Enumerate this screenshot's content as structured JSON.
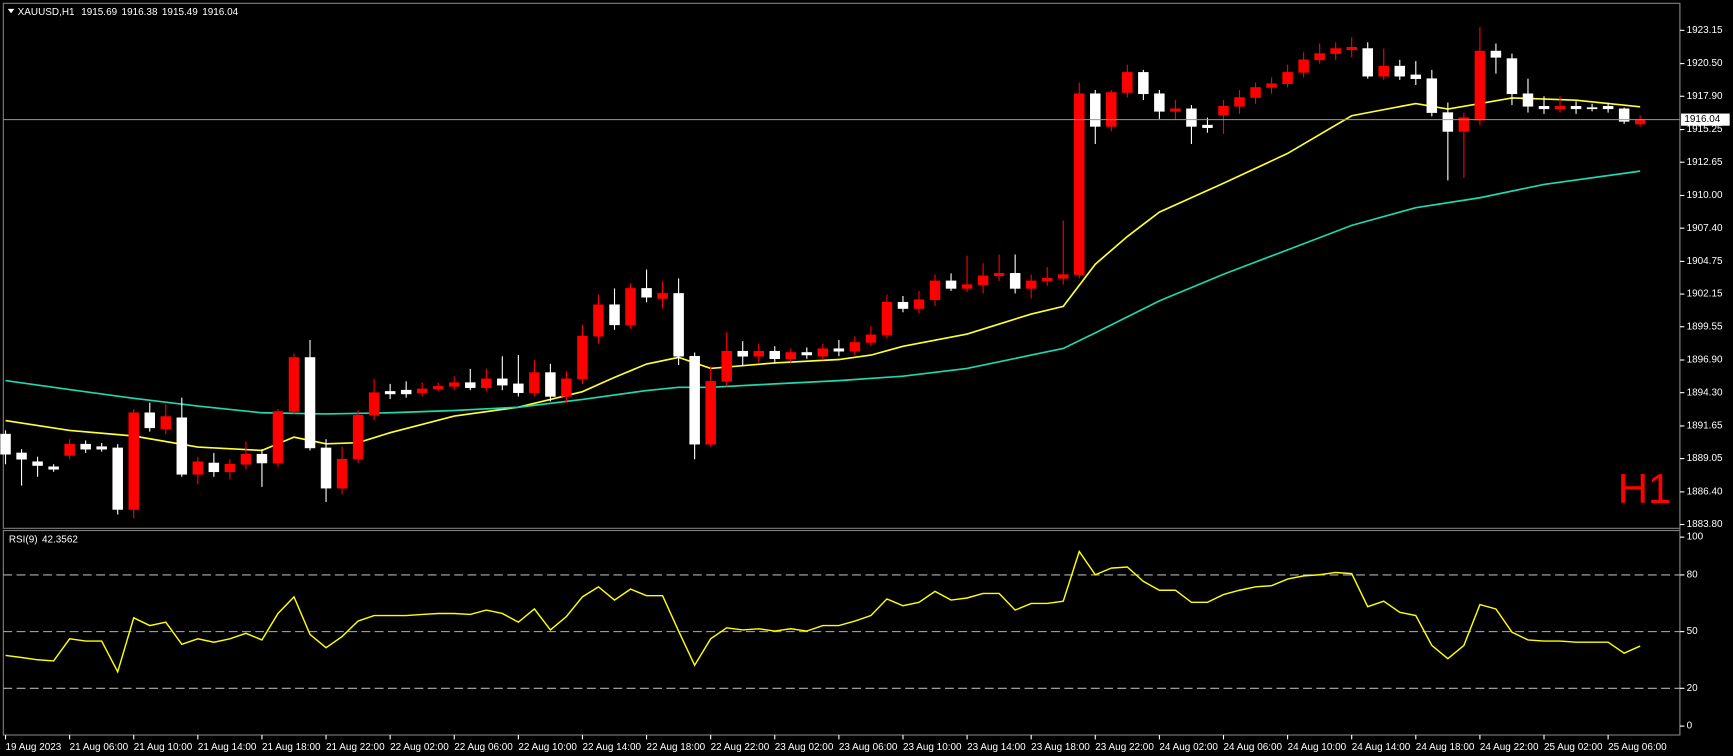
{
  "chart_data": [
    {
      "type": "candlestick",
      "symbol": "XAUUSD,H1",
      "header_values": [
        1915.69,
        1916.38,
        1915.49,
        1916.04
      ],
      "watermark": "H1",
      "categories": [
        "19 Aug 2023",
        null,
        null,
        null,
        "21 Aug 06:00",
        null,
        null,
        null,
        "21 Aug 10:00",
        null,
        null,
        null,
        "21 Aug 14:00",
        null,
        null,
        null,
        "21 Aug 18:00",
        null,
        null,
        null,
        "21 Aug 22:00",
        null,
        null,
        null,
        "22 Aug 02:00",
        null,
        null,
        null,
        "22 Aug 06:00",
        null,
        null,
        null,
        "22 Aug 10:00",
        null,
        null,
        null,
        "22 Aug 14:00",
        null,
        null,
        null,
        "22 Aug 18:00",
        null,
        null,
        null,
        "22 Aug 22:00",
        null,
        null,
        null,
        "23 Aug 02:00",
        null,
        null,
        null,
        "23 Aug 06:00",
        null,
        null,
        null,
        "23 Aug 10:00",
        null,
        null,
        null,
        "23 Aug 14:00",
        null,
        null,
        null,
        "23 Aug 18:00",
        null,
        null,
        null,
        "23 Aug 22:00",
        null,
        null,
        null,
        "24 Aug 02:00",
        null,
        null,
        null,
        "24 Aug 06:00",
        null,
        null,
        null,
        "24 Aug 10:00",
        null,
        null,
        null,
        "24 Aug 14:00",
        null,
        null,
        null,
        "24 Aug 18:00",
        null,
        null,
        null,
        "24 Aug 22:00",
        null,
        null,
        null,
        "25 Aug 02:00",
        null,
        null,
        null,
        "25 Aug 06:00",
        null,
        null
      ],
      "open": [
        1891.0,
        1889.5,
        1888.8,
        1888.4,
        1889.3,
        1890.2,
        1890.0,
        1889.9,
        1885.0,
        1892.7,
        1891.4,
        1892.3,
        1887.8,
        1888.7,
        1888.0,
        1888.6,
        1889.4,
        1888.7,
        1892.8,
        1897.1,
        1889.9,
        1886.7,
        1889.0,
        1892.5,
        1894.4,
        1894.5,
        1894.3,
        1894.6,
        1894.8,
        1895.1,
        1894.7,
        1895.4,
        1895.0,
        1894.3,
        1895.9,
        1894.0,
        1895.4,
        1898.8,
        1901.3,
        1899.7,
        1902.6,
        1901.8,
        1902.2,
        1897.2,
        1890.2,
        1895.2,
        1897.6,
        1897.2,
        1897.6,
        1897.0,
        1897.5,
        1897.2,
        1897.8,
        1897.6,
        1898.3,
        1898.9,
        1901.5,
        1901.0,
        1901.7,
        1903.2,
        1902.6,
        1902.9,
        1903.6,
        1903.8,
        1902.6,
        1903.2,
        1903.4,
        1903.7,
        1918.1,
        1915.5,
        1918.2,
        1919.8,
        1918.1,
        1916.7,
        1916.9,
        1915.6,
        1916.4,
        1917.1,
        1917.8,
        1918.6,
        1918.9,
        1919.8,
        1920.8,
        1921.3,
        1921.6,
        1921.7,
        1919.5,
        1920.3,
        1919.6,
        1919.3,
        1916.6,
        1915.1,
        1916.0,
        1921.5,
        1920.9,
        1918.1,
        1917.1,
        1916.9,
        1917.1,
        1917.0,
        1917.1,
        1916.9,
        1915.69
      ],
      "high": [
        1891.3,
        1889.8,
        1889.2,
        1888.6,
        1890.6,
        1890.5,
        1890.3,
        1890.2,
        1893.0,
        1893.5,
        1893.4,
        1893.9,
        1889.2,
        1889.5,
        1889.0,
        1890.4,
        1889.8,
        1893.0,
        1897.4,
        1898.5,
        1890.6,
        1890.0,
        1892.9,
        1895.4,
        1895.0,
        1895.2,
        1895.1,
        1895.1,
        1895.6,
        1896.2,
        1896.2,
        1897.2,
        1897.3,
        1896.9,
        1896.6,
        1896.0,
        1899.7,
        1902.1,
        1902.6,
        1903.0,
        1904.1,
        1903.2,
        1903.4,
        1897.5,
        1896.4,
        1899.1,
        1898.4,
        1898.2,
        1898.0,
        1897.8,
        1897.9,
        1898.2,
        1898.5,
        1898.8,
        1899.6,
        1902.1,
        1902.0,
        1902.4,
        1903.7,
        1903.8,
        1905.2,
        1904.6,
        1905.3,
        1905.3,
        1903.7,
        1904.3,
        1908.0,
        1919.0,
        1918.4,
        1918.4,
        1920.4,
        1920.0,
        1918.4,
        1917.6,
        1917.2,
        1916.2,
        1917.6,
        1918.4,
        1919.0,
        1919.4,
        1920.4,
        1921.4,
        1922.1,
        1922.2,
        1922.6,
        1922.2,
        1921.7,
        1920.8,
        1920.7,
        1920.0,
        1917.4,
        1916.6,
        1923.4,
        1922.1,
        1921.3,
        1919.3,
        1917.9,
        1917.9,
        1917.5,
        1917.3,
        1917.4,
        1917.0,
        1916.38
      ],
      "low": [
        1888.6,
        1886.9,
        1887.6,
        1888.0,
        1889.0,
        1889.5,
        1889.6,
        1884.6,
        1884.3,
        1891.2,
        1891.0,
        1887.6,
        1887.0,
        1887.6,
        1887.4,
        1888.2,
        1886.8,
        1888.4,
        1892.6,
        1889.7,
        1885.6,
        1886.2,
        1888.7,
        1892.1,
        1893.8,
        1893.9,
        1894.0,
        1894.4,
        1894.5,
        1894.5,
        1894.4,
        1894.5,
        1894.0,
        1894.0,
        1893.6,
        1893.5,
        1895.0,
        1898.2,
        1899.3,
        1899.4,
        1901.5,
        1901.0,
        1896.5,
        1889.0,
        1890.0,
        1894.8,
        1896.4,
        1896.7,
        1896.6,
        1896.7,
        1897.0,
        1896.9,
        1897.2,
        1897.3,
        1898.0,
        1898.6,
        1900.7,
        1900.6,
        1901.2,
        1902.4,
        1902.3,
        1902.2,
        1903.2,
        1902.2,
        1901.8,
        1902.8,
        1902.9,
        1903.4,
        1914.1,
        1915.1,
        1917.8,
        1917.6,
        1916.1,
        1916.0,
        1914.1,
        1915.0,
        1914.9,
        1916.5,
        1917.3,
        1918.1,
        1918.6,
        1919.4,
        1920.5,
        1920.8,
        1921.0,
        1919.3,
        1919.2,
        1919.2,
        1918.8,
        1916.3,
        1911.2,
        1911.4,
        1915.6,
        1919.7,
        1917.2,
        1916.6,
        1916.5,
        1916.6,
        1916.5,
        1916.7,
        1916.6,
        1915.7,
        1915.49
      ],
      "close": [
        1889.4,
        1889.0,
        1888.5,
        1888.2,
        1890.2,
        1889.8,
        1889.8,
        1885.0,
        1892.7,
        1891.5,
        1892.4,
        1887.8,
        1888.8,
        1888.0,
        1888.6,
        1889.4,
        1888.7,
        1892.8,
        1897.1,
        1889.9,
        1886.7,
        1889.0,
        1892.5,
        1894.3,
        1894.2,
        1894.2,
        1894.6,
        1894.8,
        1895.1,
        1894.7,
        1895.4,
        1894.9,
        1894.3,
        1895.9,
        1894.0,
        1895.4,
        1898.8,
        1901.3,
        1899.7,
        1902.6,
        1901.9,
        1902.2,
        1897.2,
        1890.2,
        1895.2,
        1897.6,
        1897.2,
        1897.6,
        1897.0,
        1897.5,
        1897.3,
        1897.8,
        1897.6,
        1898.3,
        1898.9,
        1901.5,
        1901.0,
        1901.7,
        1903.2,
        1902.6,
        1902.9,
        1903.6,
        1903.8,
        1902.6,
        1903.2,
        1903.4,
        1903.7,
        1918.1,
        1915.5,
        1918.2,
        1919.8,
        1918.1,
        1916.7,
        1916.9,
        1915.5,
        1915.4,
        1917.1,
        1917.8,
        1918.6,
        1918.9,
        1919.8,
        1920.8,
        1921.3,
        1921.7,
        1921.8,
        1919.5,
        1920.3,
        1919.5,
        1919.3,
        1916.6,
        1915.1,
        1916.2,
        1921.5,
        1921.0,
        1918.1,
        1917.1,
        1916.9,
        1917.1,
        1916.9,
        1916.9,
        1916.9,
        1915.9,
        1916.04
      ],
      "up_color": "#ff0000",
      "down_color": "#ffffff",
      "lines": [
        {
          "color": "#ffff33",
          "x": [
            0,
            4,
            8,
            12,
            16,
            18,
            20,
            22,
            24,
            28,
            32,
            36,
            38,
            40,
            42,
            44,
            48,
            52,
            54,
            56,
            60,
            64,
            66,
            68,
            70,
            72,
            76,
            80,
            84,
            88,
            90,
            92,
            94,
            98,
            102
          ],
          "values": [
            1892.08,
            1891.29,
            1890.85,
            1889.97,
            1889.7,
            1890.76,
            1890.23,
            1890.32,
            1891.11,
            1892.44,
            1893.14,
            1894.38,
            1895.52,
            1896.58,
            1897.11,
            1896.23,
            1896.67,
            1896.94,
            1897.29,
            1897.99,
            1898.97,
            1900.56,
            1901.17,
            1904.53,
            1906.73,
            1908.68,
            1910.97,
            1913.35,
            1916.35,
            1917.32,
            1916.88,
            1917.32,
            1917.77,
            1917.59,
            1917.06
          ]
        },
        {
          "color": "#20d8b0",
          "x": [
            0,
            4,
            8,
            12,
            16,
            20,
            24,
            28,
            32,
            36,
            40,
            42,
            44,
            48,
            52,
            56,
            60,
            64,
            66,
            68,
            72,
            76,
            80,
            84,
            88,
            92,
            96,
            102
          ],
          "values": [
            1895.26,
            1894.55,
            1893.85,
            1893.23,
            1892.7,
            1892.61,
            1892.7,
            1892.88,
            1893.14,
            1893.76,
            1894.47,
            1894.73,
            1894.73,
            1895.0,
            1895.26,
            1895.61,
            1896.23,
            1897.29,
            1897.82,
            1899.06,
            1901.61,
            1903.73,
            1905.67,
            1907.62,
            1909.03,
            1909.82,
            1910.88,
            1911.94
          ]
        }
      ],
      "last_price": 1916.04,
      "ylim": [
        1883.5,
        1925.3
      ],
      "yticks": [
        1923.15,
        {
          "value": 1920.5,
          "label": "1920.50"
        },
        {
          "value": 1917.9,
          "label": "1917.90"
        },
        1915.25,
        1912.65,
        {
          "value": 1910,
          "label": "1910.00"
        },
        {
          "value": 1907.4,
          "label": "1907.40"
        },
        1904.75,
        1902.15,
        1899.55,
        {
          "value": 1896.9,
          "label": "1896.90"
        },
        {
          "value": 1894.3,
          "label": "1894.30"
        },
        1891.65,
        1889.05,
        {
          "value": 1886.4,
          "label": "1886.40"
        },
        {
          "value": 1883.8,
          "label": "1883.80"
        }
      ]
    },
    {
      "type": "line",
      "title": "RSI(9)",
      "title_value": 42.3562,
      "color": "#ffff00",
      "values": [
        37.4,
        36.3,
        35.1,
        34.5,
        46.2,
        45,
        45,
        28.7,
        57.3,
        53.2,
        55,
        43.3,
        46.2,
        44.4,
        46.2,
        49.1,
        45.6,
        59.6,
        68.4,
        48.5,
        41.5,
        47.4,
        55.6,
        58.5,
        58.5,
        58.5,
        59.1,
        59.6,
        59.6,
        59.1,
        61.4,
        59.6,
        55,
        62,
        50.9,
        58,
        68.4,
        73.7,
        66.7,
        72.5,
        69,
        69,
        50.3,
        32.2,
        46.2,
        52,
        50.9,
        51.5,
        50.3,
        51.5,
        50.3,
        53.2,
        53.2,
        55.6,
        58.5,
        67.3,
        63.7,
        65.5,
        71.3,
        66.7,
        67.8,
        70.2,
        70.2,
        61.4,
        64.9,
        64.9,
        66.1,
        92.4,
        80.1,
        83.6,
        84.2,
        76.6,
        71.9,
        71.9,
        65.5,
        65.5,
        69.6,
        71.9,
        73.7,
        74.3,
        77.8,
        79.5,
        80.1,
        81.3,
        80.7,
        63.2,
        66.1,
        60.2,
        58.5,
        42.7,
        35.7,
        42.7,
        64.3,
        62,
        49.7,
        45.6,
        45,
        45,
        44.4,
        44.4,
        44.4,
        38.6,
        42.3562
      ],
      "levels": [
        20,
        50,
        80
      ],
      "ylim": [
        -4.7,
        103.5
      ],
      "yticks": [
        0,
        20,
        50,
        80,
        100
      ]
    }
  ]
}
